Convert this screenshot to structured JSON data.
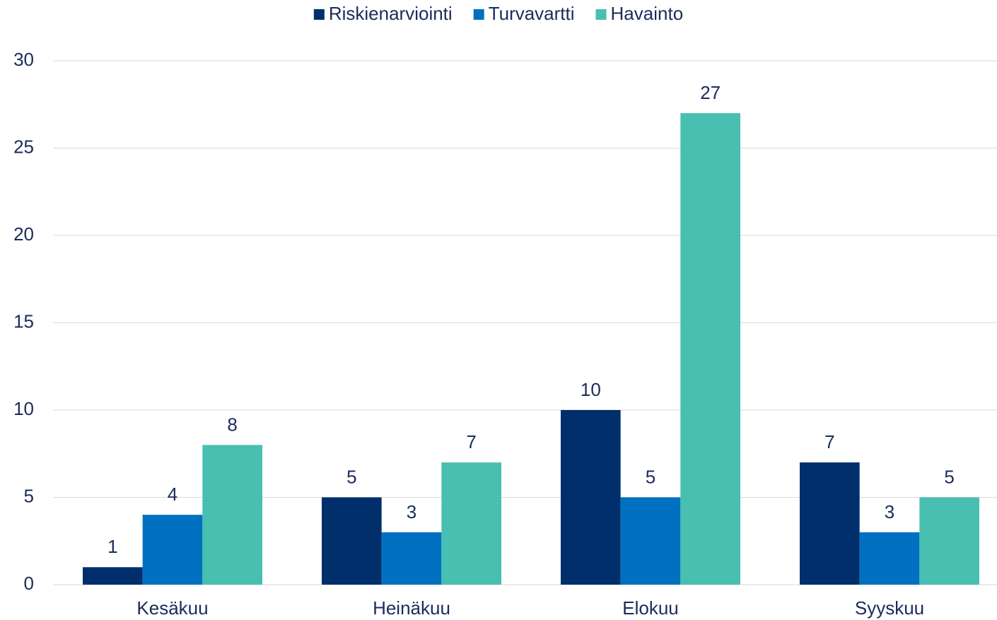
{
  "chart_data": {
    "type": "bar",
    "categories": [
      "Kesäkuu",
      "Heinäkuu",
      "Elokuu",
      "Syyskuu"
    ],
    "series": [
      {
        "name": "Riskienarviointi",
        "color": "#002f6c",
        "values": [
          1,
          5,
          10,
          7
        ]
      },
      {
        "name": "Turvavartti",
        "color": "#0070c0",
        "values": [
          4,
          3,
          5,
          3
        ]
      },
      {
        "name": "Havainto",
        "color": "#48bfb0",
        "values": [
          8,
          7,
          27,
          5
        ]
      }
    ],
    "ylim": [
      0,
      30
    ],
    "yticks": [
      0,
      5,
      10,
      15,
      20,
      25,
      30
    ],
    "grid": true,
    "legend": "top"
  }
}
